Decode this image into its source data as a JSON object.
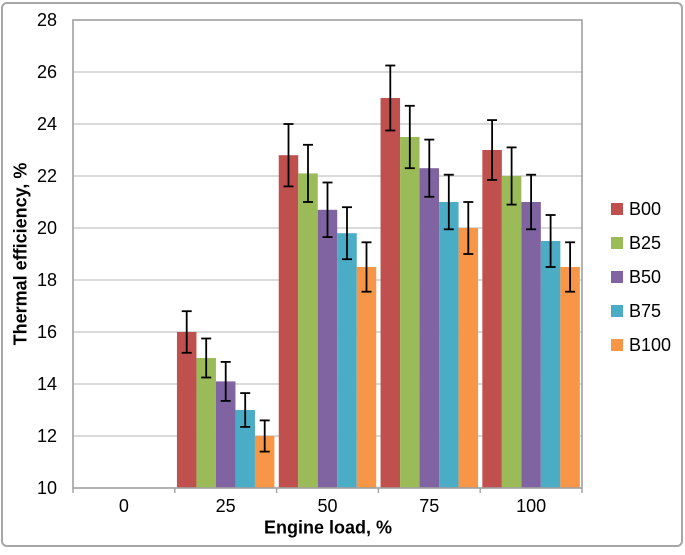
{
  "figure": {
    "background": "#ffffff",
    "border_color": "#a6a6a6"
  },
  "chart_data": {
    "type": "bar",
    "xlabel": "Engine load, %",
    "ylabel": "Thermal efficiency, %",
    "categories": [
      "0",
      "25",
      "50",
      "75",
      "100"
    ],
    "y_axis": {
      "min": 10,
      "max": 28,
      "step": 2,
      "tick_labels": [
        "10",
        "12",
        "14",
        "16",
        "18",
        "20",
        "22",
        "24",
        "26",
        "28"
      ]
    },
    "grid": true,
    "legend_position": "right",
    "series": [
      {
        "name": "B00",
        "color": "#c0504d",
        "values": [
          null,
          16.0,
          22.8,
          25.0,
          23.0
        ],
        "error_bars": [
          null,
          0.8,
          1.2,
          1.25,
          1.15
        ]
      },
      {
        "name": "B25",
        "color": "#9bbb59",
        "values": [
          null,
          15.0,
          22.1,
          23.5,
          22.0
        ],
        "error_bars": [
          null,
          0.75,
          1.1,
          1.2,
          1.1
        ]
      },
      {
        "name": "B50",
        "color": "#8064a2",
        "values": [
          null,
          14.1,
          20.7,
          22.3,
          21.0
        ],
        "error_bars": [
          null,
          0.75,
          1.05,
          1.1,
          1.05
        ]
      },
      {
        "name": "B75",
        "color": "#4bacc6",
        "values": [
          null,
          13.0,
          19.8,
          21.0,
          19.5
        ],
        "error_bars": [
          null,
          0.65,
          1.0,
          1.05,
          1.0
        ]
      },
      {
        "name": "B100",
        "color": "#f79646",
        "values": [
          null,
          12.0,
          18.5,
          20.0,
          18.5
        ],
        "error_bars": [
          null,
          0.6,
          0.95,
          1.0,
          0.95
        ]
      }
    ],
    "error_bar_color": "#000000",
    "gridline_color": "#c3c3c3",
    "axis_color": "#a0a0a0"
  }
}
